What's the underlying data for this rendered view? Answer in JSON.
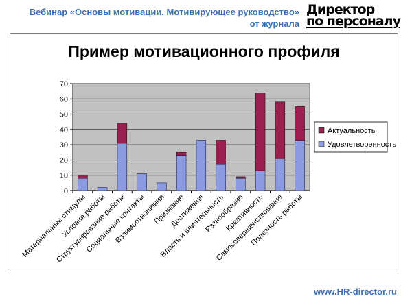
{
  "header": {
    "webinar_title": "Вебинар «Основы мотивации. Мотивирующее руководство»",
    "subtitle": "от журнала",
    "logo_line1": "Директор",
    "logo_line2": "по персоналу"
  },
  "footer": {
    "url": "www.HR-director.ru"
  },
  "colors": {
    "link": "#3b6fb6",
    "plot_bg": "#c0c0c0",
    "satisfaction": "#8b9be0",
    "actuality": "#9b1f4f"
  },
  "chart_data": {
    "type": "bar",
    "stacked": true,
    "title": "Пример мотивационного профиля",
    "xlabel": "",
    "ylabel": "",
    "ylim": [
      0,
      70
    ],
    "yticks": [
      0,
      10,
      20,
      30,
      40,
      50,
      60,
      70
    ],
    "grid": true,
    "legend_position": "right",
    "categories": [
      "Материальные стимулы",
      "Условия работы",
      "Структурирование работы",
      "Социальные контакты",
      "Взаимоотношения",
      "Признание",
      "Достижения",
      "Власть и влиятельность",
      "Разнообразие",
      "Креативность",
      "Самосовершенствование",
      "Полезность работы"
    ],
    "series": [
      {
        "name": "Удовлетворенность",
        "color": "#8b9be0",
        "values": [
          8,
          2,
          31,
          11,
          5,
          23,
          33,
          17,
          8,
          13,
          21,
          33
        ]
      },
      {
        "name": "Актуальность",
        "color": "#9b1f4f",
        "values": [
          2,
          0,
          13,
          0,
          0,
          2,
          0,
          16,
          1,
          51,
          37,
          22
        ]
      }
    ],
    "legend_order": [
      "Актуальность",
      "Удовлетворенность"
    ]
  }
}
